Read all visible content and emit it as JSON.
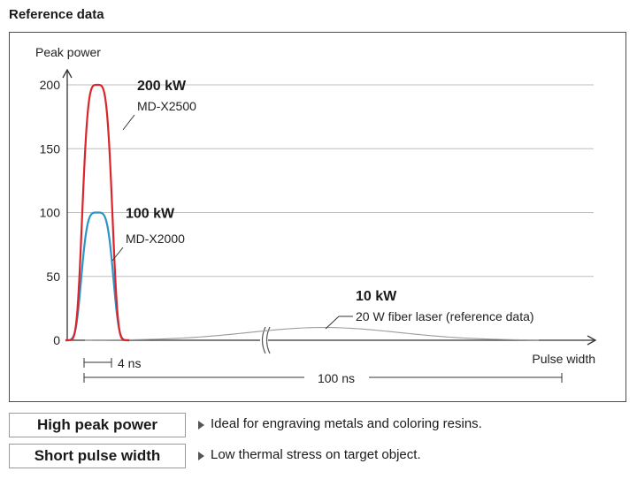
{
  "section_title": "Reference data",
  "colors": {
    "md_x2500": "#d9252b",
    "md_x2000": "#2b94c9",
    "fiber": "#9c9c9c",
    "grid": "#bdbdbd",
    "axis": "#333333"
  },
  "chart_data": {
    "type": "line",
    "ylabel": "Peak power",
    "xlabel": "Pulse width",
    "ylim": [
      0,
      200
    ],
    "yticks": [
      "0",
      "50",
      "100",
      "150",
      "200"
    ],
    "y_grid_values": [
      50,
      100,
      150,
      200
    ],
    "series": [
      {
        "name": "MD-X2500",
        "peak_label": "200 kW",
        "peak": 200,
        "pulse_width_ns": 4,
        "color_key": "md_x2500"
      },
      {
        "name": "MD-X2000",
        "peak_label": "100 kW",
        "peak": 100,
        "pulse_width_ns": 4,
        "color_key": "md_x2000"
      },
      {
        "name": "20 W fiber laser (reference data)",
        "peak_label": "10 kW",
        "peak": 10,
        "pulse_width_ns": 100,
        "color_key": "fiber"
      }
    ],
    "dimensions": [
      {
        "label": "4 ns",
        "value_ns": 4
      },
      {
        "label": "100 ns",
        "value_ns": 100
      }
    ],
    "axis_break": true
  },
  "features": [
    {
      "label": "High peak power",
      "description": "Ideal for engraving metals and coloring resins."
    },
    {
      "label": "Short pulse width",
      "description": "Low thermal stress on target object."
    }
  ]
}
